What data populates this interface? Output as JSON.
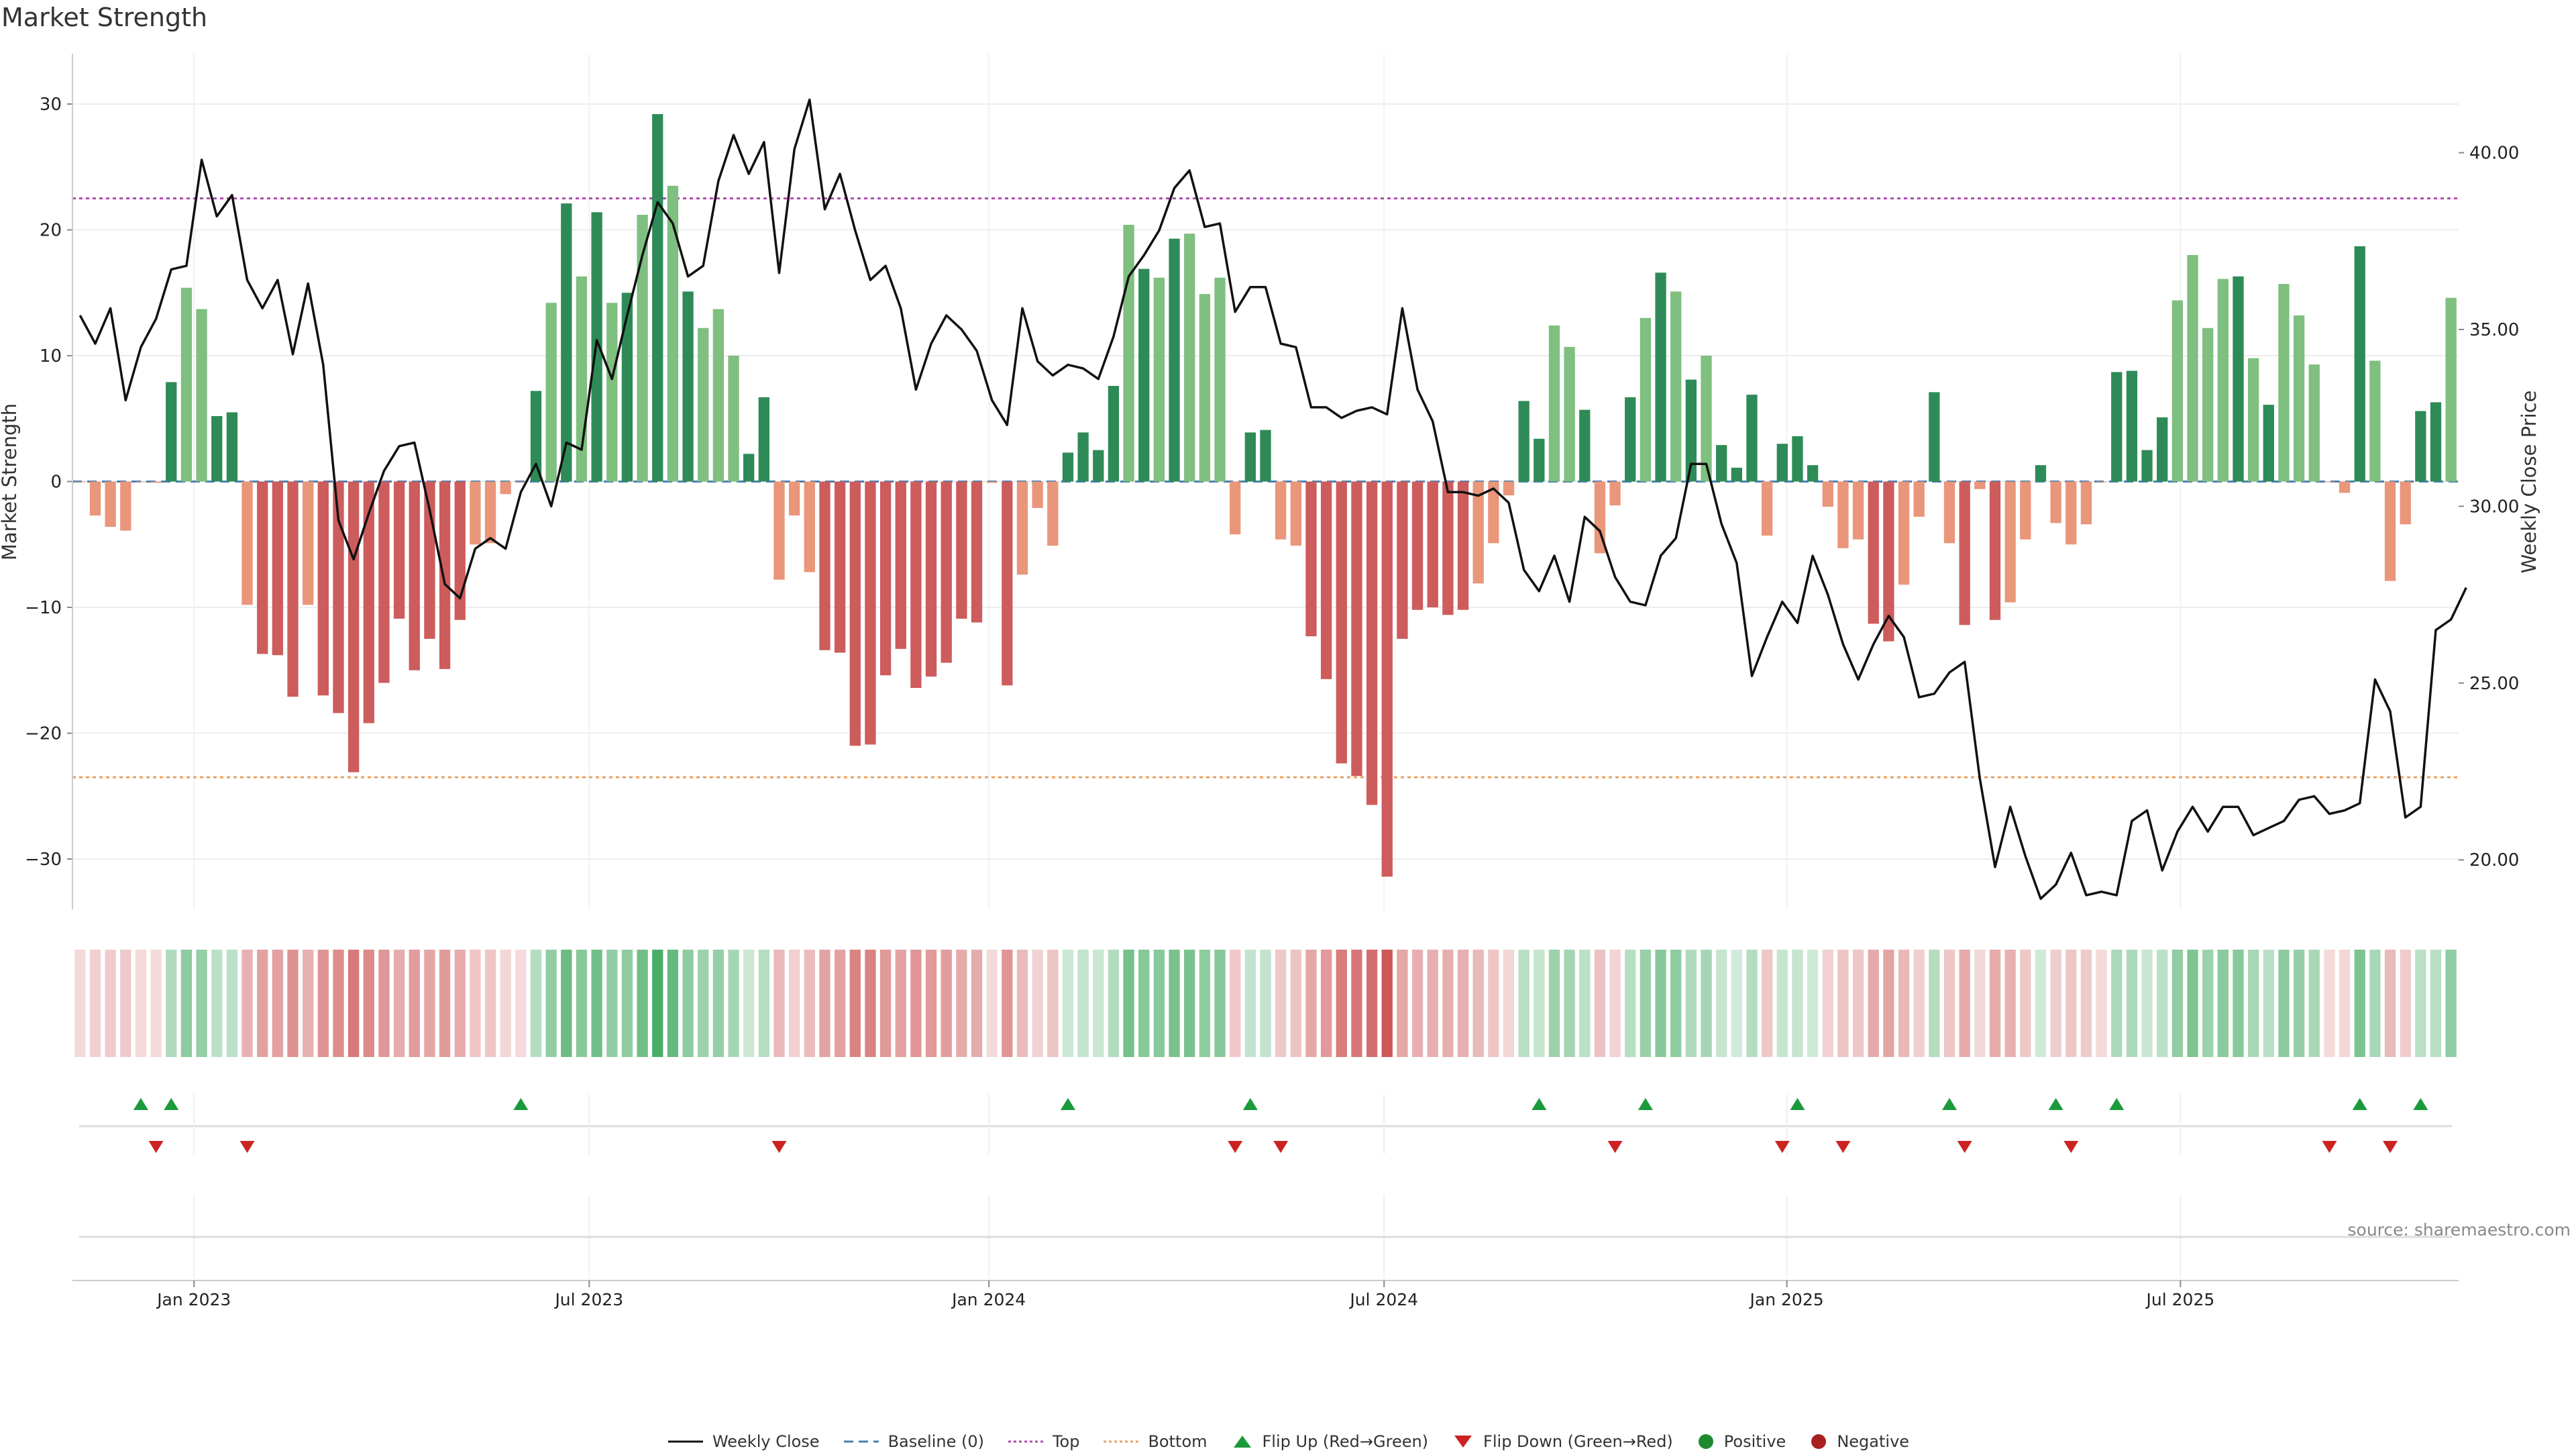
{
  "title": "Market Strength",
  "source_note": "source: sharemaestro.com",
  "colors": {
    "strong_green": "#2e8b57",
    "light_green": "#7fbf7f",
    "strong_red": "#cd5c5c",
    "light_red": "#e9967a",
    "line": "#111111",
    "top_line": "#b04bb0",
    "bottom_line": "#e8a060",
    "baseline": "#4a7fb0",
    "flip_up": "#1a9a3a",
    "flip_down": "#cc2222"
  },
  "legend": {
    "weekly_close": "Weekly Close",
    "baseline": "Baseline (0)",
    "top": "Top",
    "bottom": "Bottom",
    "flip_up": "Flip Up (Red→Green)",
    "flip_down": "Flip Down (Green→Red)",
    "positive": "Positive",
    "negative": "Negative"
  },
  "chart_data": {
    "type": "bar",
    "title": "Market Strength",
    "ylabel_left": "Market Strength",
    "ylabel_right": "Weekly Close Price",
    "ylim_left": [
      -34,
      34
    ],
    "ylim_right": [
      18.6,
      42.8
    ],
    "yticks_left": [
      "30",
      "20",
      "10",
      "0",
      "−10",
      "−20",
      "−30"
    ],
    "yticks_right": [
      "40.00",
      "35.00",
      "30.00",
      "25.00",
      "20.00"
    ],
    "x_ticks": [
      "Jan 2023",
      "Jul 2023",
      "Jan 2024",
      "Jul 2024",
      "Jan 2025",
      "Jul 2025"
    ],
    "x_tick_weeks": [
      7.5,
      33.5,
      59.8,
      85.8,
      112.3,
      138.2
    ],
    "top_level": 22.5,
    "bottom_level": -23.5,
    "grid": true,
    "strength": [
      0,
      -2.7,
      -3.6,
      -3.9,
      0,
      -0.1,
      7.9,
      15.4,
      13.7,
      5.2,
      5.5,
      -9.8,
      -13.7,
      -13.8,
      -17.1,
      -9.8,
      -17,
      -18.4,
      -23.1,
      -19.2,
      -16,
      -10.9,
      -15,
      -12.5,
      -14.9,
      -11,
      -5,
      -4.9,
      -1,
      0,
      7.2,
      14.2,
      22.1,
      16.3,
      21.4,
      14.2,
      15,
      21.2,
      29.2,
      23.5,
      15.1,
      12.2,
      13.7,
      10,
      2.2,
      6.7,
      -7.8,
      -2.7,
      -7.2,
      -13.4,
      -13.6,
      -21,
      -20.9,
      -15.4,
      -13.3,
      -16.4,
      -15.5,
      -14.4,
      -10.9,
      -11.2,
      -0.1,
      -16.2,
      -7.4,
      -2.1,
      -5.1,
      2.3,
      3.9,
      2.5,
      7.6,
      20.4,
      16.9,
      16.2,
      19.3,
      19.7,
      14.9,
      16.2,
      -4.2,
      3.9,
      4.1,
      -4.6,
      -5.1,
      -12.3,
      -15.7,
      -22.4,
      -23.4,
      -25.7,
      -31.4,
      -12.5,
      -10.2,
      -10,
      -10.6,
      -10.2,
      -8.1,
      -4.9,
      -1.1,
      6.4,
      3.4,
      12.4,
      10.7,
      5.7,
      -5.7,
      -1.9,
      6.7,
      13,
      16.6,
      15.1,
      8.1,
      10,
      2.9,
      1.1,
      6.9,
      -4.3,
      3,
      3.6,
      1.3,
      -2,
      -5.3,
      -4.6,
      -11.3,
      -12.7,
      -8.2,
      -2.8,
      7.1,
      -4.9,
      -11.4,
      -0.6,
      -11,
      -9.6,
      -4.6,
      1.3,
      -3.3,
      -5,
      -3.4,
      0,
      8.7,
      8.8,
      2.5,
      5.1,
      14.4,
      18,
      12.2,
      16.1,
      16.3,
      9.8,
      6.1,
      15.7,
      13.2,
      9.3,
      0,
      -0.9,
      18.7,
      9.6,
      -7.9,
      -3.4,
      5.6,
      6.3,
      14.6
    ],
    "close": [
      35.4,
      34.6,
      35.6,
      33.0,
      34.5,
      35.3,
      36.7,
      36.8,
      39.8,
      38.2,
      38.8,
      36.4,
      35.6,
      36.4,
      34.3,
      36.3,
      34.0,
      29.6,
      28.5,
      29.8,
      31.0,
      31.7,
      31.8,
      29.9,
      27.8,
      27.4,
      28.8,
      29.1,
      28.8,
      30.4,
      31.2,
      30.0,
      31.8,
      31.6,
      34.7,
      33.6,
      35.4,
      37.1,
      38.6,
      38.0,
      36.5,
      36.8,
      39.2,
      40.5,
      39.4,
      40.3,
      36.6,
      40.1,
      41.5,
      38.4,
      39.4,
      37.8,
      36.4,
      36.8,
      35.6,
      33.3,
      34.6,
      35.4,
      35.0,
      34.4,
      33.0,
      32.3,
      35.6,
      34.1,
      33.7,
      34.0,
      33.9,
      33.6,
      34.8,
      36.5,
      37.1,
      37.8,
      39.0,
      39.5,
      37.9,
      38.0,
      35.5,
      36.2,
      36.2,
      34.6,
      34.5,
      32.8,
      32.8,
      32.5,
      32.7,
      32.8,
      32.6,
      35.6,
      33.3,
      32.4,
      30.4,
      30.4,
      30.3,
      30.5,
      30.1,
      28.2,
      27.6,
      28.6,
      27.3,
      29.7,
      29.3,
      28.0,
      27.3,
      27.2,
      28.6,
      29.1,
      31.2,
      31.2,
      29.5,
      28.4,
      25.2,
      26.3,
      27.3,
      26.7,
      28.6,
      27.5,
      26.1,
      25.1,
      26.1,
      26.9,
      26.3,
      24.6,
      24.7,
      25.3,
      25.6,
      22.3,
      19.8,
      21.5,
      20.1,
      18.9,
      19.3,
      20.2,
      19.0,
      19.1,
      19.0,
      21.1,
      21.4,
      19.7,
      20.8,
      21.5,
      20.8,
      21.5,
      21.5,
      20.7,
      20.9,
      21.1,
      21.7,
      21.8,
      21.3,
      21.4,
      21.6,
      25.1,
      24.2,
      21.2,
      21.5,
      26.5,
      26.8,
      27.7
    ],
    "flip_up_weeks": [
      4,
      6,
      29,
      65,
      77,
      96,
      103,
      113,
      123,
      130,
      134,
      150,
      154
    ],
    "flip_down_weeks": [
      5,
      11,
      46,
      76,
      79,
      101,
      112,
      116,
      124,
      131,
      148,
      152
    ],
    "series": [
      {
        "name": "Weekly Close",
        "type": "line",
        "axis": "right"
      },
      {
        "name": "Baseline (0)",
        "type": "line"
      },
      {
        "name": "Top",
        "type": "line"
      },
      {
        "name": "Bottom",
        "type": "line"
      },
      {
        "name": "Flip Up (Red→Green)",
        "type": "scatter"
      },
      {
        "name": "Flip Down (Green→Red)",
        "type": "scatter"
      },
      {
        "name": "Positive",
        "type": "scatter"
      },
      {
        "name": "Negative",
        "type": "scatter"
      }
    ],
    "legend_position": "bottom"
  }
}
